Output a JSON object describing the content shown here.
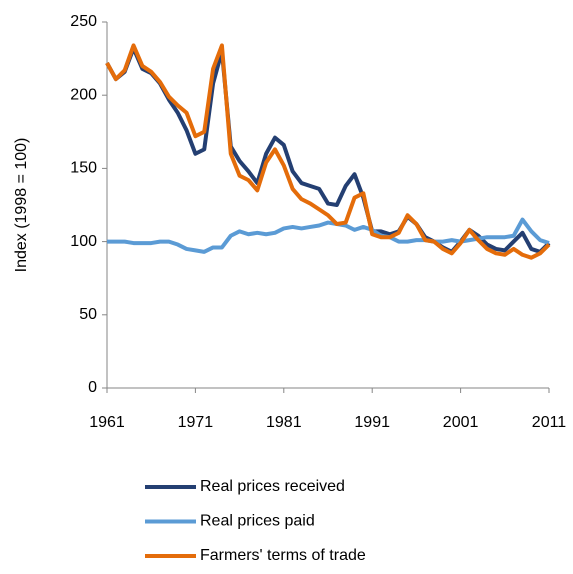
{
  "chart_data": {
    "type": "line",
    "y_label": "Index (1998 = 100)",
    "x": [
      1961,
      1962,
      1963,
      1964,
      1965,
      1966,
      1967,
      1968,
      1969,
      1970,
      1971,
      1972,
      1973,
      1974,
      1975,
      1976,
      1977,
      1978,
      1979,
      1980,
      1981,
      1982,
      1983,
      1984,
      1985,
      1986,
      1987,
      1988,
      1989,
      1990,
      1991,
      1992,
      1993,
      1994,
      1995,
      1996,
      1997,
      1998,
      1999,
      2000,
      2001,
      2002,
      2003,
      2004,
      2005,
      2006,
      2007,
      2008,
      2009,
      2010,
      2011
    ],
    "series": [
      {
        "name": "Real prices received",
        "color": "#243f72",
        "values": [
          222,
          211,
          216,
          232,
          218,
          215,
          208,
          197,
          188,
          176,
          160,
          163,
          208,
          230,
          165,
          155,
          148,
          140,
          160,
          171,
          166,
          148,
          140,
          138,
          136,
          126,
          125,
          138,
          146,
          130,
          107,
          107,
          105,
          107,
          117,
          112,
          103,
          100,
          96,
          93,
          100,
          108,
          104,
          98,
          95,
          94,
          100,
          106,
          95,
          93,
          99
        ]
      },
      {
        "name": "Real prices paid",
        "color": "#5b9bd5",
        "values": [
          100,
          100,
          100,
          99,
          99,
          99,
          100,
          100,
          98,
          95,
          94,
          93,
          96,
          96,
          104,
          107,
          105,
          106,
          105,
          106,
          109,
          110,
          109,
          110,
          111,
          113,
          112,
          111,
          108,
          110,
          108,
          104,
          103,
          100,
          100,
          101,
          101,
          100,
          100,
          101,
          100,
          101,
          102,
          103,
          103,
          103,
          104,
          115,
          107,
          101,
          99
        ]
      },
      {
        "name": "Farmers' terms of trade",
        "color": "#e46c0a",
        "values": [
          222,
          211,
          217,
          234,
          220,
          216,
          209,
          199,
          193,
          188,
          172,
          175,
          218,
          234,
          160,
          145,
          142,
          135,
          154,
          163,
          152,
          136,
          129,
          126,
          122,
          118,
          112,
          113,
          130,
          133,
          105,
          103,
          103,
          106,
          118,
          112,
          101,
          100,
          95,
          92,
          99,
          108,
          101,
          95,
          92,
          91,
          95,
          91,
          89,
          92,
          98
        ]
      }
    ],
    "xlim": [
      1961,
      2011
    ],
    "xticks": [
      1961,
      1971,
      1981,
      1991,
      2001,
      2011
    ],
    "ylim": [
      0,
      250
    ],
    "yticks": [
      0,
      50,
      100,
      150,
      200,
      250
    ],
    "grid": false
  }
}
